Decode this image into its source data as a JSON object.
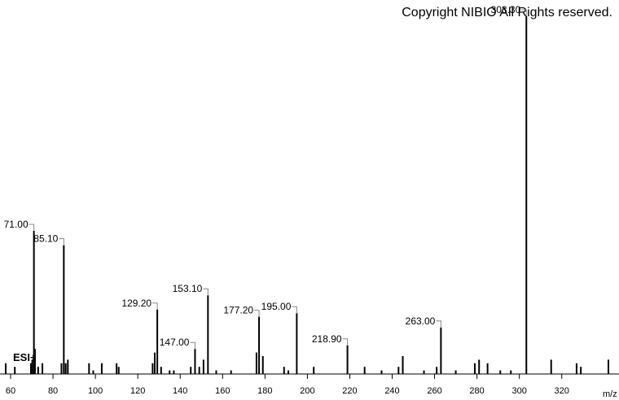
{
  "chart_data": {
    "type": "stick",
    "title": "Copyright NIBIO All Rights reserved.",
    "annotation": "ESI+",
    "x_label": "m/z",
    "color": "#000000",
    "xlim": [
      55,
      347
    ],
    "ylim": [
      0,
      100
    ],
    "xticks": [
      60,
      80,
      100,
      120,
      140,
      160,
      180,
      200,
      220,
      240,
      260,
      280,
      300,
      320
    ],
    "x": [
      57.7,
      62,
      69.6,
      70.2,
      71.0,
      71.5,
      73,
      75,
      84,
      85.1,
      86,
      87,
      97,
      99,
      103,
      110,
      111,
      127,
      128,
      129.2,
      131,
      135,
      137,
      145,
      147.0,
      149,
      151,
      153.1,
      157,
      164,
      176,
      177.2,
      179,
      189,
      191,
      195.0,
      203,
      218.9,
      227,
      235,
      243,
      245,
      255,
      261,
      263.0,
      270,
      279,
      281,
      285,
      291,
      296,
      303.3,
      315,
      327,
      329,
      342
    ],
    "values": [
      3,
      2,
      3,
      4,
      40,
      7,
      2,
      3,
      3,
      36,
      3,
      4,
      3,
      1,
      3,
      3,
      2,
      3,
      6,
      18,
      2,
      1,
      1,
      2,
      7,
      2,
      4,
      22,
      1,
      1,
      6,
      16,
      5,
      2,
      1,
      17,
      2,
      8,
      2,
      1,
      2,
      5,
      1,
      2,
      13,
      1,
      3,
      4,
      3,
      1,
      1,
      100,
      4,
      3,
      2,
      4
    ],
    "labels": [
      null,
      null,
      null,
      null,
      "71.00",
      null,
      null,
      null,
      null,
      "85.10",
      null,
      null,
      null,
      null,
      null,
      null,
      null,
      null,
      null,
      "129.20",
      null,
      null,
      null,
      null,
      "147.00",
      null,
      null,
      "153.10",
      null,
      null,
      null,
      "177.20",
      null,
      null,
      null,
      "195.00",
      null,
      "218.90",
      null,
      null,
      null,
      null,
      null,
      null,
      "263.00",
      null,
      null,
      null,
      null,
      null,
      null,
      "303.30",
      null,
      null,
      null,
      null
    ]
  }
}
